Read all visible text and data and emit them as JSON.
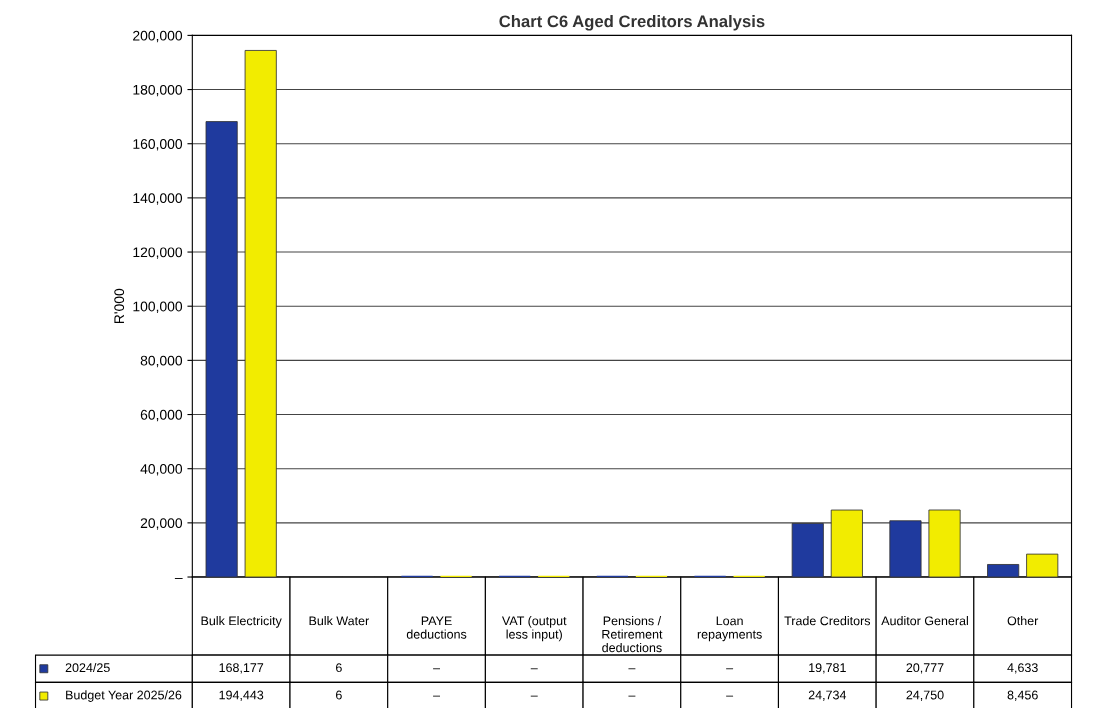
{
  "chart_data": {
    "type": "bar",
    "title": "Chart C6 Aged Creditors Analysis",
    "ylabel": "R'000",
    "categories": [
      "Bulk Electricity",
      "Bulk Water",
      "PAYE deductions",
      "VAT (output less input)",
      "Pensions / Retirement deductions",
      "Loan repayments",
      "Trade Creditors",
      "Auditor General",
      "Other"
    ],
    "series": [
      {
        "name": "2024/25",
        "color": "#1f3a9e",
        "values": [
          168177,
          6,
          0,
          0,
          0,
          0,
          19781,
          20777,
          4633
        ],
        "value_labels": [
          "168,177",
          "6",
          "–",
          "–",
          "–",
          "–",
          "19,781",
          "20,777",
          "4,633"
        ]
      },
      {
        "name": "Budget Year 2025/26",
        "color": "#f2ec00",
        "values": [
          194443,
          6,
          0,
          0,
          0,
          0,
          24734,
          24750,
          8456
        ],
        "value_labels": [
          "194,443",
          "6",
          "–",
          "–",
          "–",
          "–",
          "24,734",
          "24,750",
          "8,456"
        ]
      }
    ],
    "ylim": [
      0,
      200000
    ],
    "yticks": [
      {
        "value": 0,
        "label": "–"
      },
      {
        "value": 20000,
        "label": "20,000"
      },
      {
        "value": 40000,
        "label": "40,000"
      },
      {
        "value": 60000,
        "label": "60,000"
      },
      {
        "value": 80000,
        "label": "80,000"
      },
      {
        "value": 100000,
        "label": "100,000"
      },
      {
        "value": 120000,
        "label": "120,000"
      },
      {
        "value": 140000,
        "label": "140,000"
      },
      {
        "value": 160000,
        "label": "160,000"
      },
      {
        "value": 180000,
        "label": "180,000"
      },
      {
        "value": 200000,
        "label": "200,000"
      }
    ],
    "grid": "y",
    "legend": "bottom"
  }
}
